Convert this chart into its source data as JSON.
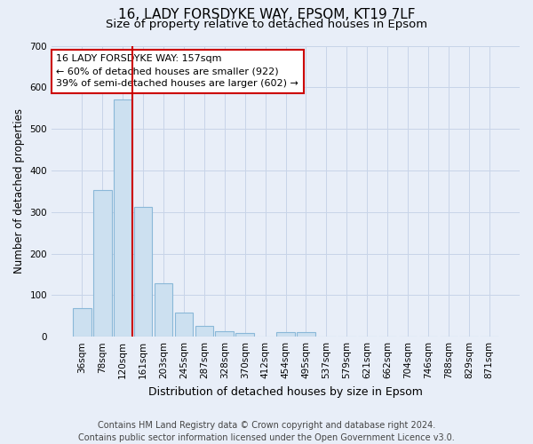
{
  "title_line1": "16, LADY FORSDYKE WAY, EPSOM, KT19 7LF",
  "title_line2": "Size of property relative to detached houses in Epsom",
  "xlabel": "Distribution of detached houses by size in Epsom",
  "ylabel": "Number of detached properties",
  "footer": "Contains HM Land Registry data © Crown copyright and database right 2024.\nContains public sector information licensed under the Open Government Licence v3.0.",
  "bar_labels": [
    "36sqm",
    "78sqm",
    "120sqm",
    "161sqm",
    "203sqm",
    "245sqm",
    "287sqm",
    "328sqm",
    "370sqm",
    "412sqm",
    "454sqm",
    "495sqm",
    "537sqm",
    "579sqm",
    "621sqm",
    "662sqm",
    "704sqm",
    "746sqm",
    "788sqm",
    "829sqm",
    "871sqm"
  ],
  "bar_values": [
    68,
    352,
    570,
    313,
    128,
    57,
    25,
    14,
    8,
    0,
    10,
    10,
    0,
    0,
    0,
    0,
    0,
    0,
    0,
    0,
    0
  ],
  "bar_color": "#cce0f0",
  "bar_edge_color": "#8ab8d8",
  "grid_color": "#c8d4e8",
  "background_color": "#e8eef8",
  "annotation_text": "16 LADY FORSDYKE WAY: 157sqm\n← 60% of detached houses are smaller (922)\n39% of semi-detached houses are larger (602) →",
  "vline_x": 2.48,
  "ylim": [
    0,
    700
  ],
  "yticks": [
    0,
    100,
    200,
    300,
    400,
    500,
    600,
    700
  ],
  "annotation_box_color": "#ffffff",
  "annotation_border_color": "#cc0000",
  "vline_color": "#cc0000",
  "title1_fontsize": 11,
  "title2_fontsize": 9.5,
  "ylabel_fontsize": 8.5,
  "xlabel_fontsize": 9,
  "tick_fontsize": 7.5,
  "footer_fontsize": 7,
  "annotation_fontsize": 8
}
